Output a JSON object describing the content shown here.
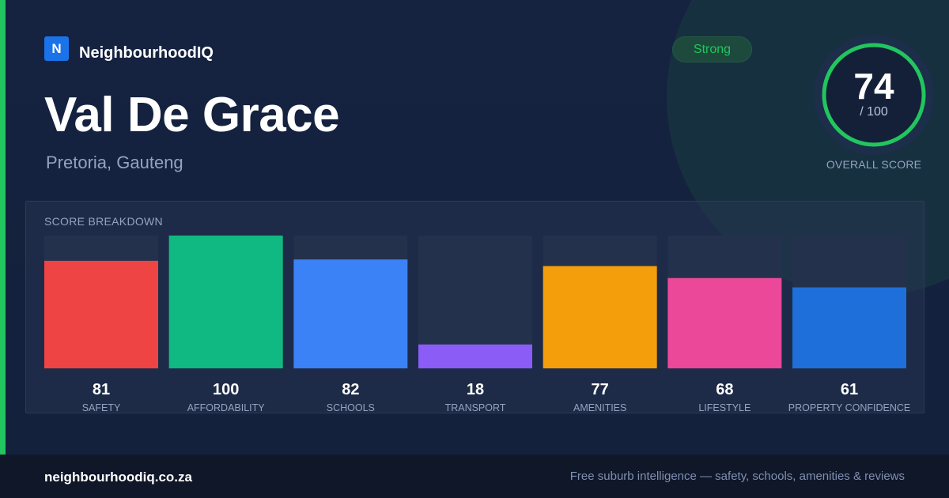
{
  "brand": {
    "logo_letter": "N",
    "name": "NeighbourhoodIQ"
  },
  "suburb": {
    "name": "Val De Grace",
    "location": "Pretoria, Gauteng"
  },
  "badge": {
    "label": "Strong",
    "color": "#22c55e"
  },
  "overall": {
    "score": "74",
    "max_label": "/ 100",
    "label": "OVERALL SCORE",
    "fraction": 0.74
  },
  "breakdown": {
    "title": "SCORE BREAKDOWN"
  },
  "chart_data": {
    "type": "bar",
    "categories": [
      "SAFETY",
      "AFFORDABILITY",
      "SCHOOLS",
      "TRANSPORT",
      "AMENITIES",
      "LIFESTYLE",
      "PROPERTY CONFIDENCE"
    ],
    "values": [
      81,
      100,
      82,
      18,
      77,
      68,
      61
    ],
    "colors": [
      "#ef4444",
      "#10b981",
      "#3b82f6",
      "#8b5cf6",
      "#f59e0b",
      "#ec4899",
      "#1e6fd9"
    ],
    "ylim": [
      0,
      100
    ],
    "title": "SCORE BREAKDOWN",
    "xlabel": "",
    "ylabel": "",
    "grid": false
  },
  "footer": {
    "url": "neighbourhoodiq.co.za",
    "tagline": "Free suburb intelligence — safety, schools, amenities & reviews"
  },
  "colors": {
    "accent": "#22c55e",
    "background": "#14213d",
    "footer": "#0f1729"
  }
}
